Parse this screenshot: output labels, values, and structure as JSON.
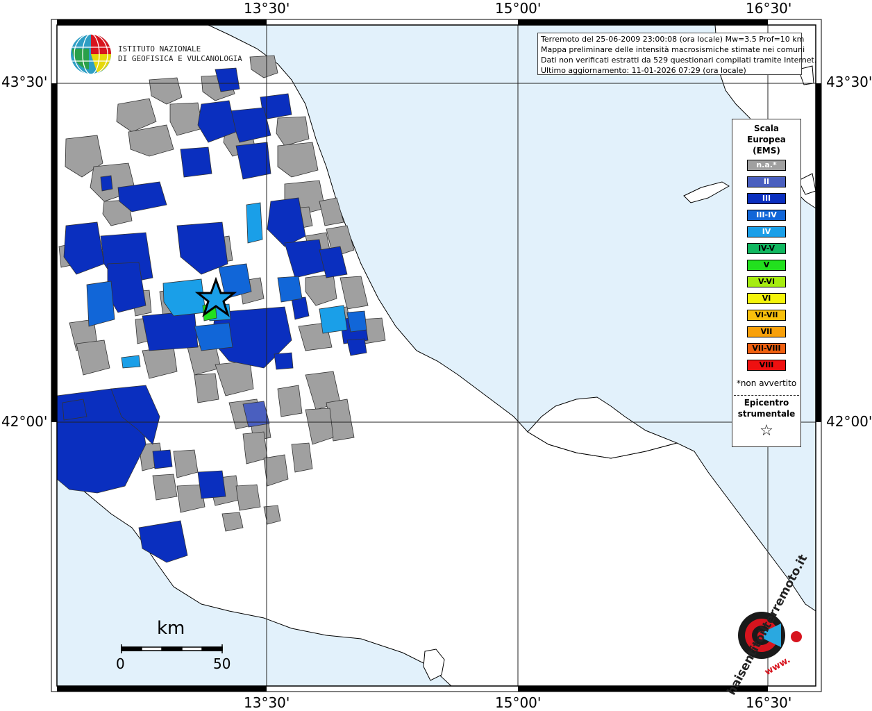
{
  "ticks": {
    "top": [
      "13°30'",
      "15°00'",
      "16°30'"
    ],
    "bottom": [
      "13°30'",
      "15°00'",
      "16°30'"
    ],
    "left": [
      "43°30'",
      "42°00'"
    ],
    "right": [
      "43°30'",
      "42°00'"
    ]
  },
  "logo": {
    "line1": "ISTITUTO NAZIONALE",
    "line2": "DI GEOFISICA E VULCANOLOGIA"
  },
  "info": {
    "line1": "Terremoto del 25-06-2009 23:00:08 (ora locale) Mw=3.5 Prof=10 km",
    "line2": "Mappa preliminare delle intensità macrosismiche stimate nei comuni",
    "line3": "Dati non verificati estratti da 529 questionari compilati tramite Internet.",
    "line4": "Ultimo aggiornamento: 11-01-2026 07:29 (ora locale)"
  },
  "legend": {
    "title1": "Scala",
    "title2": "Europea",
    "title3": "(EMS)",
    "items": [
      {
        "label": "n.a.*",
        "color": "#a0a0a0",
        "text_color": "#ffffff"
      },
      {
        "label": "II",
        "color": "#4a5fbf",
        "text_color": "#ffffff"
      },
      {
        "label": "III",
        "color": "#0a2fbf",
        "text_color": "#ffffff"
      },
      {
        "label": "III-IV",
        "color": "#1166d8",
        "text_color": "#ffffff"
      },
      {
        "label": "IV",
        "color": "#1a9fe8",
        "text_color": "#ffffff"
      },
      {
        "label": "IV-V",
        "color": "#10b860",
        "text_color": "#000000"
      },
      {
        "label": "V",
        "color": "#22e01e",
        "text_color": "#000000"
      },
      {
        "label": "V-VI",
        "color": "#a6ec10",
        "text_color": "#000000"
      },
      {
        "label": "VI",
        "color": "#f4f40a",
        "text_color": "#000000"
      },
      {
        "label": "VI-VII",
        "color": "#f8c00c",
        "text_color": "#000000"
      },
      {
        "label": "VII",
        "color": "#f8a00a",
        "text_color": "#000000"
      },
      {
        "label": "VII-VIII",
        "color": "#f06010",
        "text_color": "#000000"
      },
      {
        "label": "VIII",
        "color": "#ee1010",
        "text_color": "#000000"
      }
    ],
    "note": "*non avvertito",
    "epicentro1": "Epicentro",
    "epicentro2": "strumentale",
    "star": "☆"
  },
  "scale": {
    "unit": "km",
    "min": "0",
    "max": "50"
  },
  "hsi": {
    "text": "haisentitoilterremoto.it",
    "www": "www."
  },
  "colors": {
    "sea": "#e2f1fb",
    "land": "#ffffff",
    "na": "#a0a0a0",
    "ii": "#4a5fbf",
    "iii": "#0a2fbf",
    "iii_iv": "#1166d8",
    "iv": "#1a9fe8",
    "v": "#22e01e"
  }
}
